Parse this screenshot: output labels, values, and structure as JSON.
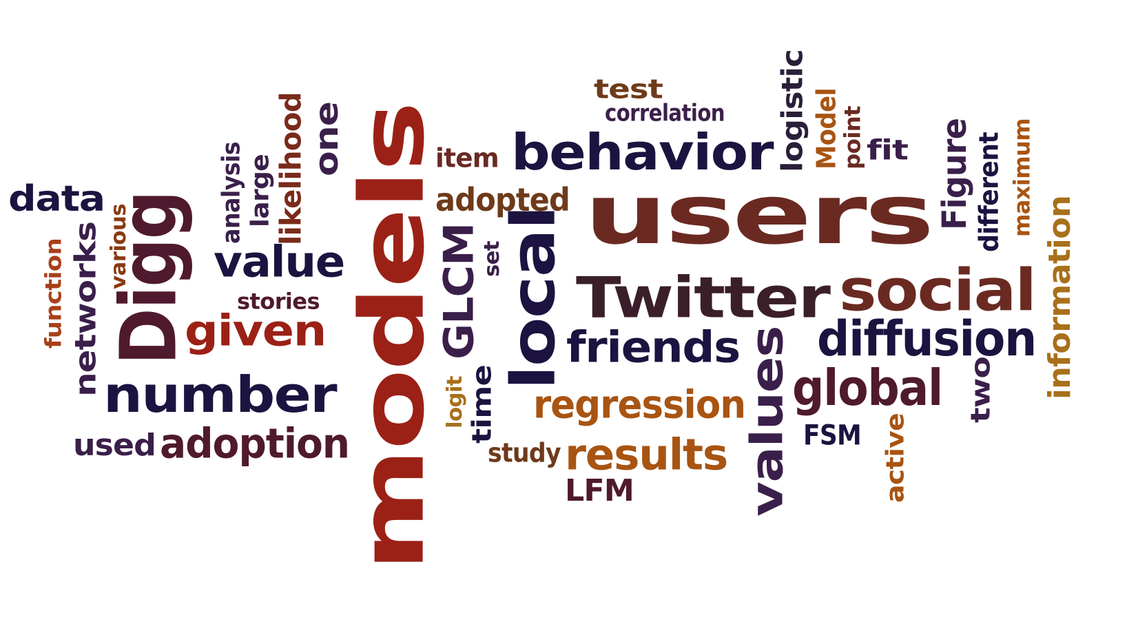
{
  "colors": {
    "red": "#9b2116",
    "darkred": "#6a2a22",
    "navy": "#1c1340",
    "maroon": "#4f1a2e",
    "brown": "#6e3a1a",
    "orange": "#a85412",
    "purple": "#3a1f4a",
    "rust": "#8a3a12"
  },
  "words": [
    {
      "id": "models",
      "text": "models",
      "color": "#9b2116"
    },
    {
      "id": "users",
      "text": "users",
      "color": "#6a2a22"
    },
    {
      "id": "digg",
      "text": "Digg",
      "color": "#4f1a2e"
    },
    {
      "id": "behavior",
      "text": "behavior",
      "color": "#1c1340"
    },
    {
      "id": "twitter",
      "text": "Twitter",
      "color": "#3a1f2a"
    },
    {
      "id": "local",
      "text": "local",
      "color": "#1c1340"
    },
    {
      "id": "number",
      "text": "number",
      "color": "#1c1340"
    },
    {
      "id": "social",
      "text": "social",
      "color": "#6a2a22"
    },
    {
      "id": "diffusion",
      "text": "diffusion",
      "color": "#1c1340"
    },
    {
      "id": "values",
      "text": "values",
      "color": "#3a1f4a"
    },
    {
      "id": "global",
      "text": "global",
      "color": "#4f1a2e"
    },
    {
      "id": "friends",
      "text": "friends",
      "color": "#1c1340"
    },
    {
      "id": "given",
      "text": "given",
      "color": "#9b2116"
    },
    {
      "id": "value",
      "text": "value",
      "color": "#1c1340"
    },
    {
      "id": "results",
      "text": "results",
      "color": "#a85412"
    },
    {
      "id": "regression",
      "text": "regression",
      "color": "#a85412"
    },
    {
      "id": "adoption",
      "text": "adoption",
      "color": "#4f1a2e"
    },
    {
      "id": "data",
      "text": "data",
      "color": "#1c1340"
    },
    {
      "id": "information",
      "text": "information",
      "color": "#a8701a"
    },
    {
      "id": "glcm",
      "text": "GLCM",
      "color": "#3a1f4a"
    },
    {
      "id": "networks",
      "text": "networks",
      "color": "#3a1f4a"
    },
    {
      "id": "figure",
      "text": "Figure",
      "color": "#3a1f4a"
    },
    {
      "id": "logistic",
      "text": "logistic",
      "color": "#2a1f3a"
    },
    {
      "id": "one",
      "text": "one",
      "color": "#3a1f4a"
    },
    {
      "id": "test",
      "text": "test",
      "color": "#6e3a1a"
    },
    {
      "id": "adopted",
      "text": "adopted",
      "color": "#6e3a1a"
    },
    {
      "id": "used",
      "text": "used",
      "color": "#3a1f4a"
    },
    {
      "id": "fit",
      "text": "fit",
      "color": "#3a1f4a"
    },
    {
      "id": "likelihood",
      "text": "likelihood",
      "color": "#7a2a1a"
    },
    {
      "id": "large",
      "text": "large",
      "color": "#3a1f4a"
    },
    {
      "id": "analysis",
      "text": "analysis",
      "color": "#3a1f4a"
    },
    {
      "id": "time",
      "text": "time",
      "color": "#1c1340"
    },
    {
      "id": "two",
      "text": "two",
      "color": "#3a1f4a"
    },
    {
      "id": "lfm",
      "text": "LFM",
      "color": "#4f1a2e"
    },
    {
      "id": "active",
      "text": "active",
      "color": "#a85412"
    },
    {
      "id": "model",
      "text": "Model",
      "color": "#a85412"
    },
    {
      "id": "different",
      "text": "different",
      "color": "#1c1340"
    },
    {
      "id": "maximum",
      "text": "maximum",
      "color": "#a85412"
    },
    {
      "id": "function",
      "text": "function",
      "color": "#a8401a"
    },
    {
      "id": "item",
      "text": "item",
      "color": "#6a2a22"
    },
    {
      "id": "correlation",
      "text": "correlation",
      "color": "#3a1f4a"
    },
    {
      "id": "stories",
      "text": "stories",
      "color": "#4f1a2e"
    },
    {
      "id": "study",
      "text": "study",
      "color": "#6e3a1a"
    },
    {
      "id": "fsm",
      "text": "FSM",
      "color": "#1c1340"
    },
    {
      "id": "point",
      "text": "point",
      "color": "#6a2a22"
    },
    {
      "id": "various",
      "text": "various",
      "color": "#8a3a12"
    },
    {
      "id": "logit",
      "text": "logit",
      "color": "#a8701a"
    },
    {
      "id": "set",
      "text": "set",
      "color": "#3a1f4a"
    }
  ]
}
